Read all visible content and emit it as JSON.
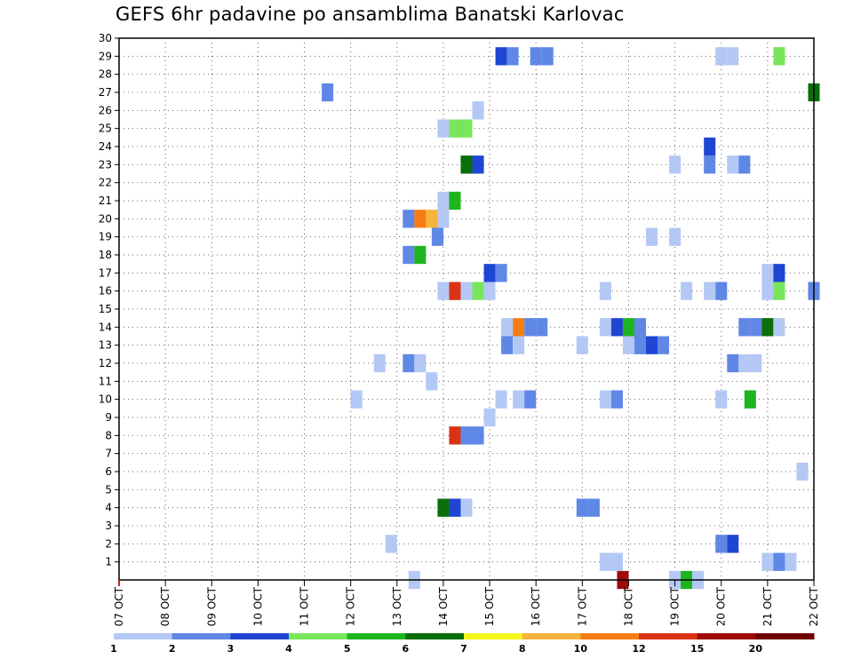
{
  "chart_data": {
    "type": "heatmap",
    "title": "GEFS 6hr padavine po ansamblima Banatski Karlovac",
    "xlabel": "",
    "ylabel": "",
    "x_tick_labels": [
      "07 OCT",
      "08 OCT",
      "09 OCT",
      "10 OCT",
      "11 OCT",
      "12 OCT",
      "13 OCT",
      "14 OCT",
      "15 OCT",
      "16 OCT",
      "17 OCT",
      "18 OCT",
      "19 OCT",
      "20 OCT",
      "21 OCT",
      "22 OCT"
    ],
    "y_tick_labels": [
      "1",
      "2",
      "3",
      "4",
      "5",
      "6",
      "7",
      "8",
      "9",
      "10",
      "11",
      "12",
      "13",
      "14",
      "15",
      "16",
      "17",
      "18",
      "19",
      "20",
      "21",
      "22",
      "23",
      "24",
      "25",
      "26",
      "27",
      "28",
      "29",
      "30"
    ],
    "x_range_steps": [
      0,
      60
    ],
    "y_range": [
      0,
      30
    ],
    "grid": true,
    "legend_placement": "bottom",
    "legend": {
      "labels": [
        "1",
        "2",
        "3",
        "4",
        "5",
        "6",
        "7",
        "8",
        "10",
        "12",
        "15",
        "20"
      ],
      "colors": [
        "#b4c8f5",
        "#5f87e6",
        "#1e46d2",
        "#78e65a",
        "#1eb41e",
        "#0a6e0a",
        "#f5f51e",
        "#f5b43c",
        "#f57d14",
        "#dc3214",
        "#a00a0a",
        "#6e0000"
      ]
    },
    "cells": [
      {
        "member": 0,
        "step": 25.5,
        "cls": 0
      },
      {
        "member": 0,
        "step": 43.5,
        "cls": 10
      },
      {
        "member": 0,
        "step": 48,
        "cls": 0
      },
      {
        "member": 0,
        "step": 49,
        "cls": 4
      },
      {
        "member": 0,
        "step": 50,
        "cls": 0
      },
      {
        "member": 1,
        "step": 42,
        "cls": 0
      },
      {
        "member": 1,
        "step": 43,
        "cls": 0
      },
      {
        "member": 1,
        "step": 56,
        "cls": 0
      },
      {
        "member": 1,
        "step": 57,
        "cls": 1
      },
      {
        "member": 1,
        "step": 58,
        "cls": 0
      },
      {
        "member": 2,
        "step": 23.5,
        "cls": 0
      },
      {
        "member": 2,
        "step": 52,
        "cls": 1
      },
      {
        "member": 2,
        "step": 53,
        "cls": 2
      },
      {
        "member": 4,
        "step": 28,
        "cls": 5
      },
      {
        "member": 4,
        "step": 29,
        "cls": 2
      },
      {
        "member": 4,
        "step": 30,
        "cls": 0
      },
      {
        "member": 4,
        "step": 40,
        "cls": 1
      },
      {
        "member": 4,
        "step": 41,
        "cls": 1
      },
      {
        "member": 6,
        "step": 59,
        "cls": 0
      },
      {
        "member": 8,
        "step": 29,
        "cls": 9
      },
      {
        "member": 8,
        "step": 30,
        "cls": 1
      },
      {
        "member": 8,
        "step": 31,
        "cls": 1
      },
      {
        "member": 9,
        "step": 32,
        "cls": 0
      },
      {
        "member": 10,
        "step": 20.5,
        "cls": 0
      },
      {
        "member": 10,
        "step": 33,
        "cls": 0
      },
      {
        "member": 10,
        "step": 34.5,
        "cls": 0
      },
      {
        "member": 10,
        "step": 35.5,
        "cls": 1
      },
      {
        "member": 10,
        "step": 42,
        "cls": 0
      },
      {
        "member": 10,
        "step": 43,
        "cls": 1
      },
      {
        "member": 10,
        "step": 52,
        "cls": 0
      },
      {
        "member": 10,
        "step": 54.5,
        "cls": 4
      },
      {
        "member": 11,
        "step": 27,
        "cls": 0
      },
      {
        "member": 12,
        "step": 22.5,
        "cls": 0
      },
      {
        "member": 12,
        "step": 25,
        "cls": 1
      },
      {
        "member": 12,
        "step": 26,
        "cls": 0
      },
      {
        "member": 12,
        "step": 53,
        "cls": 1
      },
      {
        "member": 12,
        "step": 54,
        "cls": 0
      },
      {
        "member": 12,
        "step": 55,
        "cls": 0
      },
      {
        "member": 13,
        "step": 33.5,
        "cls": 1
      },
      {
        "member": 13,
        "step": 34.5,
        "cls": 0
      },
      {
        "member": 13,
        "step": 40,
        "cls": 0
      },
      {
        "member": 13,
        "step": 44,
        "cls": 0
      },
      {
        "member": 13,
        "step": 45,
        "cls": 1
      },
      {
        "member": 13,
        "step": 46,
        "cls": 2
      },
      {
        "member": 13,
        "step": 47,
        "cls": 1
      },
      {
        "member": 14,
        "step": 33.5,
        "cls": 0
      },
      {
        "member": 14,
        "step": 34.5,
        "cls": 8
      },
      {
        "member": 14,
        "step": 35.5,
        "cls": 1
      },
      {
        "member": 14,
        "step": 36.5,
        "cls": 1
      },
      {
        "member": 14,
        "step": 42,
        "cls": 0
      },
      {
        "member": 14,
        "step": 43,
        "cls": 2
      },
      {
        "member": 14,
        "step": 44,
        "cls": 4
      },
      {
        "member": 14,
        "step": 45,
        "cls": 1
      },
      {
        "member": 14,
        "step": 54,
        "cls": 1
      },
      {
        "member": 14,
        "step": 55,
        "cls": 1
      },
      {
        "member": 14,
        "step": 56,
        "cls": 5
      },
      {
        "member": 14,
        "step": 57,
        "cls": 0
      },
      {
        "member": 16,
        "step": 28,
        "cls": 0
      },
      {
        "member": 16,
        "step": 29,
        "cls": 9
      },
      {
        "member": 16,
        "step": 30,
        "cls": 0
      },
      {
        "member": 16,
        "step": 31,
        "cls": 3
      },
      {
        "member": 16,
        "step": 32,
        "cls": 0
      },
      {
        "member": 16,
        "step": 42,
        "cls": 0
      },
      {
        "member": 16,
        "step": 49,
        "cls": 0
      },
      {
        "member": 16,
        "step": 51,
        "cls": 0
      },
      {
        "member": 16,
        "step": 52,
        "cls": 1
      },
      {
        "member": 16,
        "step": 56,
        "cls": 0
      },
      {
        "member": 16,
        "step": 57,
        "cls": 3
      },
      {
        "member": 16,
        "step": 60,
        "cls": 1
      },
      {
        "member": 17,
        "step": 32,
        "cls": 2
      },
      {
        "member": 17,
        "step": 33,
        "cls": 1
      },
      {
        "member": 17,
        "step": 56,
        "cls": 0
      },
      {
        "member": 17,
        "step": 57,
        "cls": 2
      },
      {
        "member": 18,
        "step": 25,
        "cls": 1
      },
      {
        "member": 18,
        "step": 26,
        "cls": 4
      },
      {
        "member": 19,
        "step": 27.5,
        "cls": 1
      },
      {
        "member": 19,
        "step": 46,
        "cls": 0
      },
      {
        "member": 19,
        "step": 48,
        "cls": 0
      },
      {
        "member": 20,
        "step": 25,
        "cls": 1
      },
      {
        "member": 20,
        "step": 26,
        "cls": 8
      },
      {
        "member": 20,
        "step": 27,
        "cls": 7
      },
      {
        "member": 20,
        "step": 28,
        "cls": 0
      },
      {
        "member": 21,
        "step": 28,
        "cls": 0
      },
      {
        "member": 21,
        "step": 29,
        "cls": 4
      },
      {
        "member": 23,
        "step": 30,
        "cls": 5
      },
      {
        "member": 23,
        "step": 31,
        "cls": 2
      },
      {
        "member": 23,
        "step": 48,
        "cls": 0
      },
      {
        "member": 23,
        "step": 51,
        "cls": 1
      },
      {
        "member": 23,
        "step": 53,
        "cls": 0
      },
      {
        "member": 23,
        "step": 54,
        "cls": 1
      },
      {
        "member": 24,
        "step": 51,
        "cls": 2
      },
      {
        "member": 25,
        "step": 28,
        "cls": 0
      },
      {
        "member": 25,
        "step": 29,
        "cls": 3
      },
      {
        "member": 25,
        "step": 30,
        "cls": 3
      },
      {
        "member": 26,
        "step": 31,
        "cls": 0
      },
      {
        "member": 27,
        "step": 18,
        "cls": 1
      },
      {
        "member": 27,
        "step": 60,
        "cls": 5
      },
      {
        "member": 29,
        "step": 33,
        "cls": 2
      },
      {
        "member": 29,
        "step": 34,
        "cls": 1
      },
      {
        "member": 29,
        "step": 36,
        "cls": 1
      },
      {
        "member": 29,
        "step": 37,
        "cls": 1
      },
      {
        "member": 29,
        "step": 52,
        "cls": 0
      },
      {
        "member": 29,
        "step": 53,
        "cls": 0
      },
      {
        "member": 29,
        "step": 57,
        "cls": 3
      }
    ]
  }
}
